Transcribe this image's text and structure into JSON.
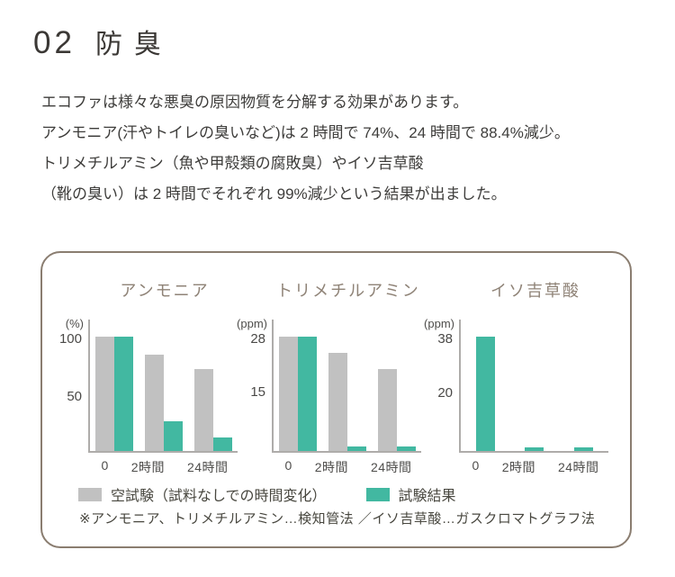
{
  "page": {
    "section_number": "02",
    "section_title": "防臭",
    "paragraph_lines": [
      "エコファは様々な悪臭の原因物質を分解する効果があります。",
      "アンモニア(汗やトイレの臭いなど)は 2 時間で 74%、24 時間で 88.4%減少。",
      "トリメチルアミン（魚や甲殻類の腐敗臭）やイソ吉草酸",
      "（靴の臭い）は 2 時間でそれぞれ 99%減少という結果が出ました。"
    ]
  },
  "colors": {
    "green": "#42b8a1",
    "gray": "#c1c1c1",
    "card_border": "#8a7d70",
    "chart_title": "#8f8377",
    "axis": "#aeacaa",
    "text_dark": "#3b3835",
    "text_body": "#3e3d3b"
  },
  "legend": {
    "items": [
      {
        "label": "空試験（試料なしでの時間変化）",
        "color_key": "gray"
      },
      {
        "label": "試験結果",
        "color_key": "green"
      }
    ],
    "footnote": "※アンモニア、トリメチルアミン…検知管法 ／イソ吉草酸…ガスクロマトグラフ法"
  },
  "chart_data": [
    {
      "type": "bar",
      "title": "アンモニア",
      "unit": "(%)",
      "ymax": 100,
      "ylim": [
        0,
        116
      ],
      "yticks": [
        100,
        50
      ],
      "categories": [
        "0",
        "2時間",
        "24時間"
      ],
      "legend_position": "bottom",
      "grid": false,
      "series": [
        {
          "name": "空試験（試料なしでの時間変化）",
          "color_key": "gray",
          "values": [
            100,
            84,
            72
          ]
        },
        {
          "name": "試験結果",
          "color_key": "green",
          "values": [
            100,
            26,
            11.6
          ]
        }
      ]
    },
    {
      "type": "bar",
      "title": "トリメチルアミン",
      "unit": "(ppm)",
      "ymax": 28,
      "ylim": [
        0,
        32.6
      ],
      "yticks": [
        28,
        15
      ],
      "categories": [
        "0",
        "2時間",
        "24時間"
      ],
      "legend_position": "bottom",
      "grid": false,
      "series": [
        {
          "name": "空試験（試料なしでの時間変化）",
          "color_key": "gray",
          "values": [
            28,
            24,
            20
          ]
        },
        {
          "name": "試験結果",
          "color_key": "green",
          "values": [
            28,
            1,
            1
          ]
        }
      ]
    },
    {
      "type": "bar",
      "title": "イソ吉草酸",
      "unit": "(ppm)",
      "ymax": 38,
      "ylim": [
        0,
        44
      ],
      "yticks": [
        38,
        20
      ],
      "categories": [
        "0",
        "2時間",
        "24時間"
      ],
      "legend_position": "bottom",
      "grid": false,
      "series": [
        {
          "name": "試験結果",
          "color_key": "green",
          "values": [
            38,
            1,
            1
          ]
        }
      ]
    }
  ]
}
